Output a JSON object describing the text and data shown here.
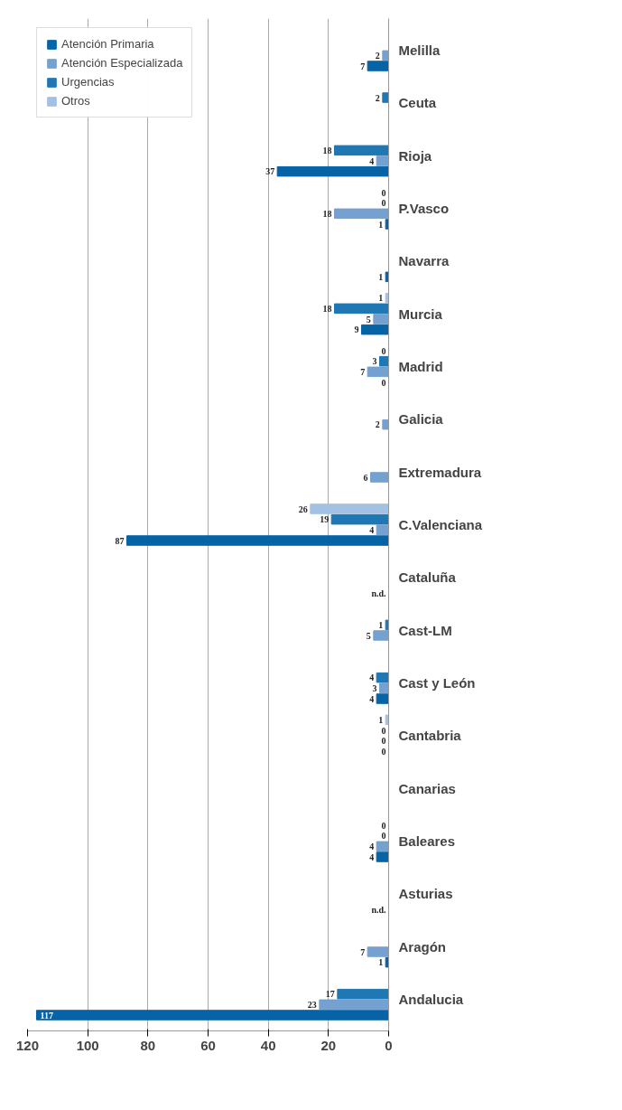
{
  "chart_data": {
    "type": "bar",
    "orientation": "horizontal",
    "categories": [
      "Melilla",
      "Ceuta",
      "Rioja",
      "P.Vasco",
      "Navarra",
      "Murcia",
      "Madrid",
      "Galicia",
      "Extremadura",
      "C.Valenciana",
      "Cataluña",
      "Cast-LM",
      "Cast y León",
      "Cantabria",
      "Canarias",
      "Baleares",
      "Asturias",
      "Aragón",
      "Andalucia"
    ],
    "series": [
      {
        "name": "Atención Primaria",
        "color": "#0563a6",
        "values": [
          7,
          null,
          37,
          1,
          1,
          9,
          0,
          null,
          null,
          87,
          null,
          null,
          4,
          0,
          null,
          4,
          null,
          1,
          117
        ],
        "value_labels": [
          "7",
          null,
          "37",
          "1",
          "1",
          "9",
          "0",
          null,
          null,
          "87",
          "n.d.",
          null,
          "4",
          "0",
          null,
          "4",
          "n.d.",
          "1",
          "117"
        ]
      },
      {
        "name": "Atención Especializada",
        "color": "#74a1cf",
        "values": [
          2,
          null,
          4,
          18,
          null,
          5,
          7,
          2,
          6,
          4,
          null,
          5,
          3,
          0,
          null,
          4,
          null,
          7,
          23
        ]
      },
      {
        "name": "Urgencias",
        "color": "#1f77b4",
        "values": [
          null,
          2,
          18,
          0,
          null,
          18,
          3,
          null,
          null,
          19,
          null,
          1,
          4,
          0,
          null,
          0,
          null,
          null,
          17
        ]
      },
      {
        "name": "Otros",
        "color": "#a3c1e3",
        "values": [
          null,
          null,
          null,
          0,
          null,
          1,
          0,
          null,
          null,
          26,
          null,
          null,
          null,
          1,
          null,
          0,
          null,
          null,
          null
        ]
      }
    ],
    "xlim": [
      120,
      0
    ],
    "xticks": [
      0,
      20,
      40,
      60,
      80,
      100,
      120
    ],
    "grid": "x",
    "legend": "top left",
    "data_labels": true
  }
}
